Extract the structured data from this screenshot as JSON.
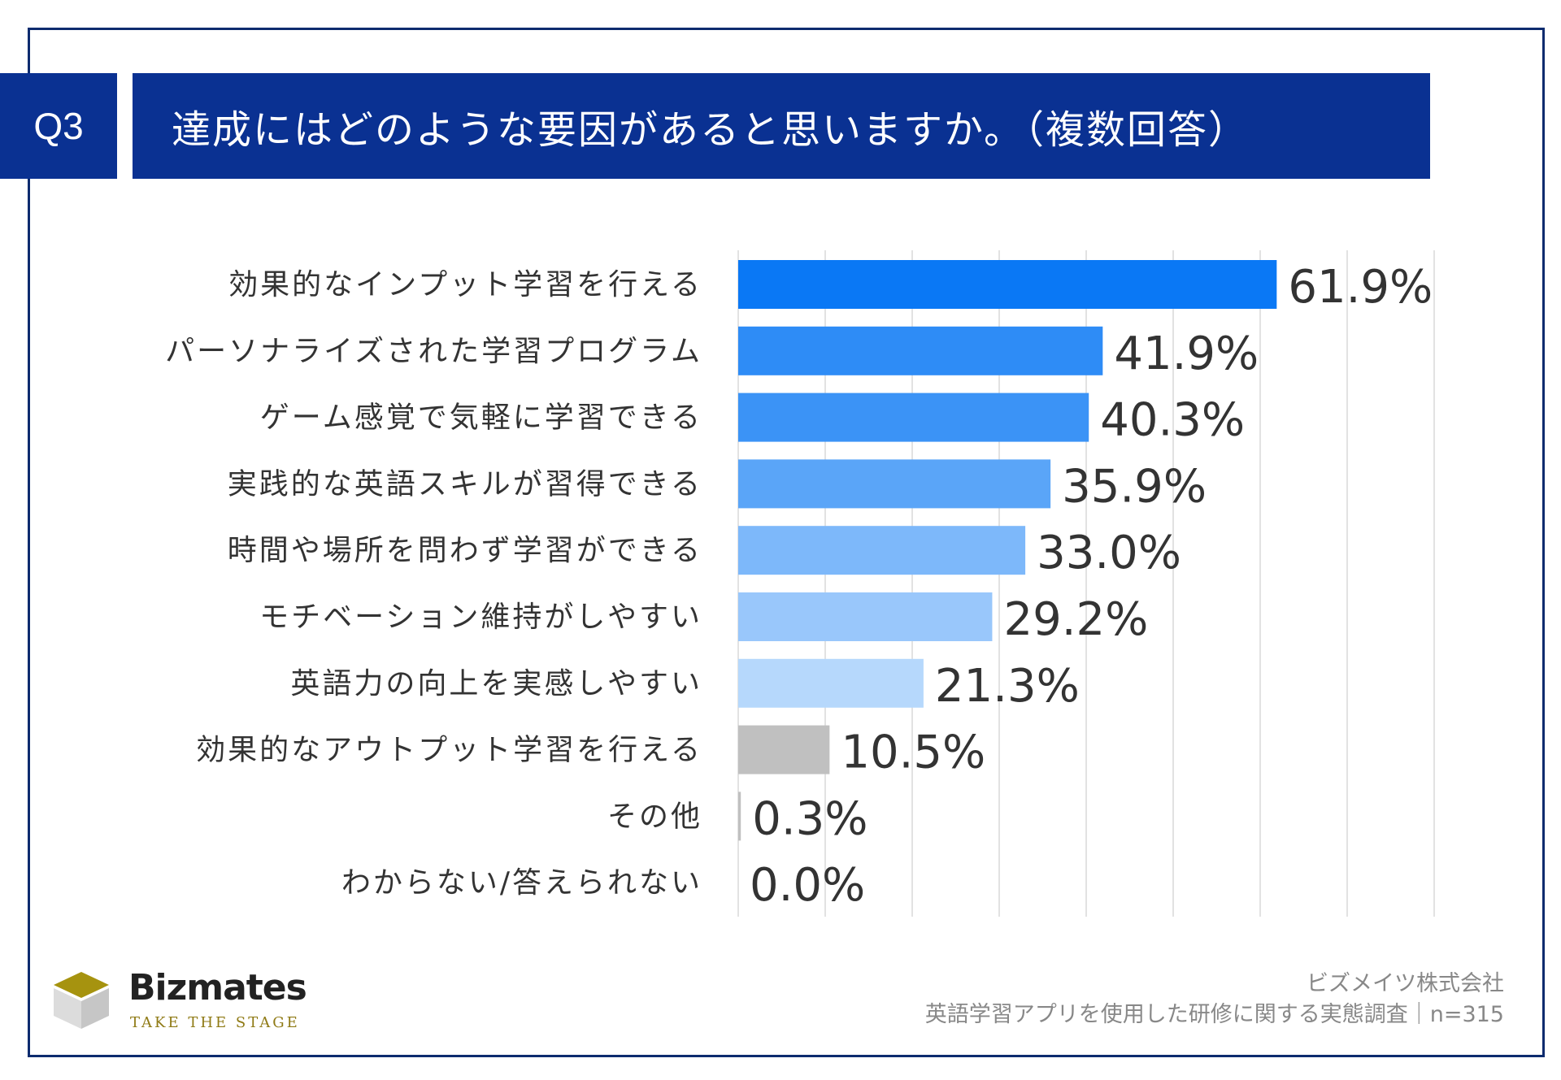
{
  "question": {
    "number": "Q3",
    "title": "達成にはどのような要因があると思いますか。（複数回答）"
  },
  "chart_data": {
    "type": "bar",
    "orientation": "horizontal",
    "categories": [
      "効果的なインプット学習を行える",
      "パーソナライズされた学習プログラム",
      "ゲーム感覚で気軽に学習できる",
      "実践的な英語スキルが習得できる",
      "時間や場所を問わず学習ができる",
      "モチベーション維持がしやすい",
      "英語力の向上を実感しやすい",
      "効果的なアウトプット学習を行える",
      "その他",
      "わからない/答えられない"
    ],
    "values": [
      61.9,
      41.9,
      40.3,
      35.9,
      33.0,
      29.2,
      21.3,
      10.5,
      0.3,
      0.0
    ],
    "value_labels": [
      "61.9%",
      "41.9%",
      "40.3%",
      "35.9%",
      "33.0%",
      "29.2%",
      "21.3%",
      "10.5%",
      "0.3%",
      "0.0%"
    ],
    "colors": [
      "#0a78f5",
      "#2e8cf6",
      "#3b93f6",
      "#5aa5f8",
      "#7db8fa",
      "#99c7fb",
      "#b6d8fc",
      "#c0c0c0",
      "#c0c0c0",
      "#c0c0c0"
    ],
    "xlim": [
      0,
      80
    ],
    "grid": true,
    "unit": "%"
  },
  "brand": {
    "name": "Bizmates",
    "tagline": "TAKE THE STAGE"
  },
  "source": {
    "company": "ビズメイツ株式会社",
    "survey": "英語学習アプリを使用した研修に関する実態調査｜n=315"
  }
}
